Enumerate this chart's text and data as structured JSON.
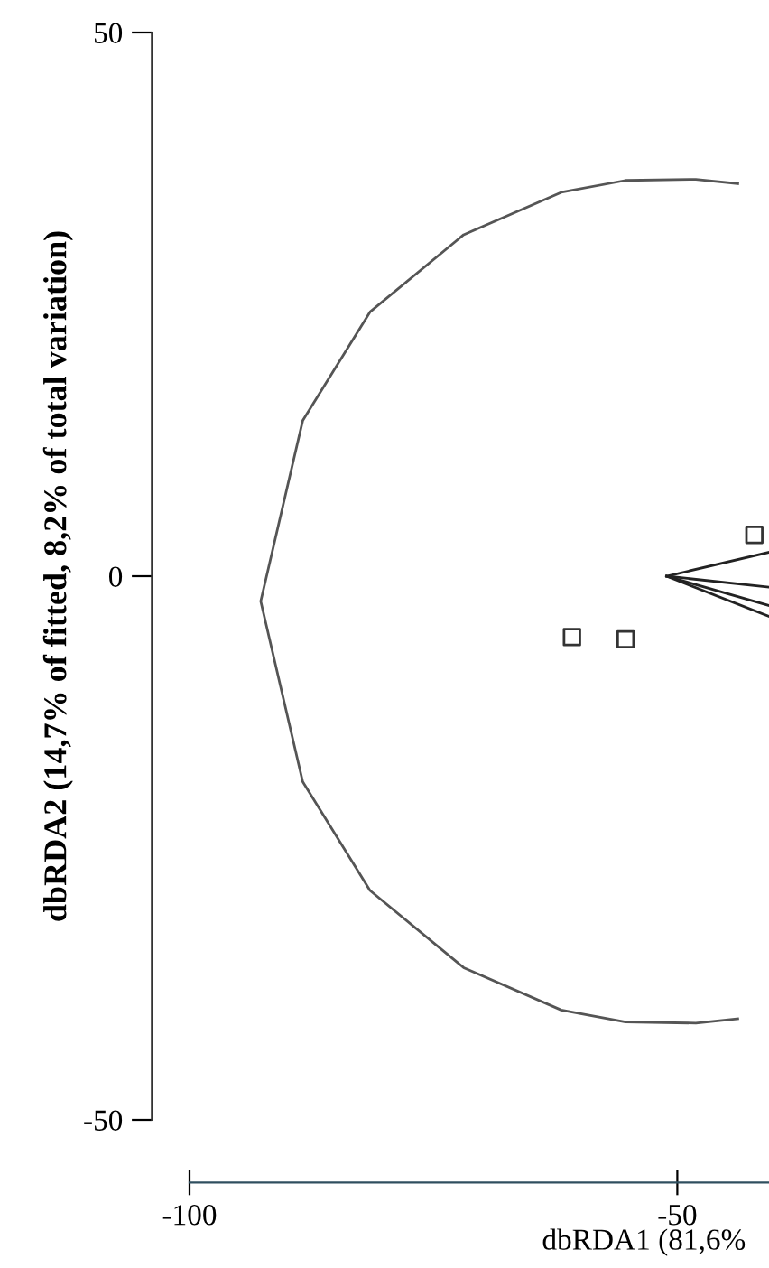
{
  "chart_data": {
    "type": "scatter",
    "xlabel": "dbRDA1 (81,6%",
    "ylabel": "dbRDA2 (14,7% of fitted, 8,2% of total variation)",
    "xlim": [
      -100,
      -40.6
    ],
    "ylim": [
      -50,
      50
    ],
    "xticks": [
      -100,
      -50
    ],
    "yticks": [
      -50,
      0,
      50
    ],
    "grid": false,
    "legend": false,
    "series": [
      {
        "marker": "square",
        "color": "#333333",
        "x": [
          -60.8,
          -55.3,
          -42.1
        ],
        "values": [
          -5.6,
          -5.8,
          3.8
        ]
      },
      {
        "type": "line",
        "color": "#555555",
        "x": [
          -43.8,
          -48.1,
          -55.3,
          -61.9,
          -71.9,
          -81.5,
          -88.4,
          -92.7,
          -88.4,
          -81.5,
          -71.9,
          -61.9,
          -55.3,
          -48.1,
          -43.8
        ],
        "values": [
          36.1,
          36.5,
          36.4,
          35.3,
          31.4,
          24.3,
          14.3,
          -2.3,
          -18.9,
          -28.9,
          -36.0,
          -39.9,
          -41.0,
          -41.1,
          -40.7
        ]
      },
      {
        "type": "line",
        "color": "#222222",
        "x": [
          -51.1,
          -40.6
        ],
        "values": [
          0,
          2.2
        ]
      },
      {
        "type": "line",
        "color": "#222222",
        "x": [
          -51.1,
          -40.6
        ],
        "values": [
          0,
          -1.0
        ]
      },
      {
        "type": "line",
        "color": "#222222",
        "x": [
          -51.1,
          -40.6
        ],
        "values": [
          0,
          -2.7
        ]
      },
      {
        "type": "line",
        "color": "#222222",
        "x": [
          -51.1,
          -40.6
        ],
        "values": [
          0,
          -3.7
        ]
      }
    ]
  }
}
